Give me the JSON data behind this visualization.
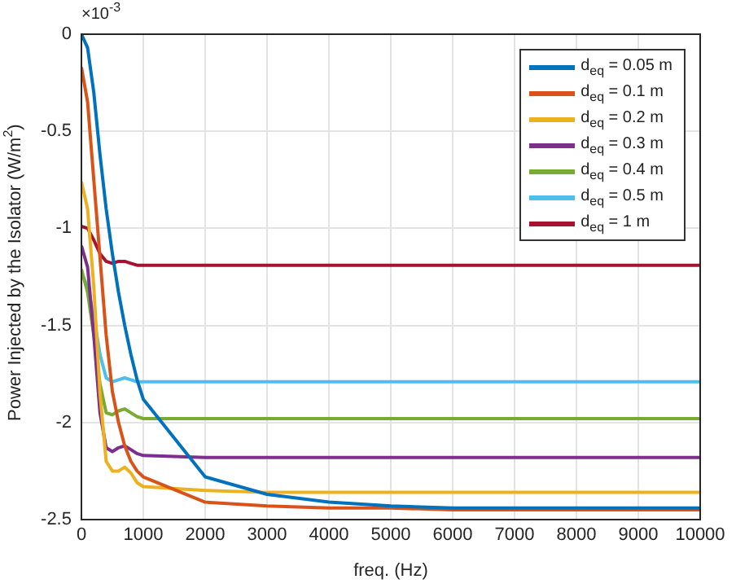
{
  "chart_data": {
    "type": "line",
    "xlabel": "freq. (Hz)",
    "ylabel": "Power Injected by the Isolator (W/m$^{2}$)",
    "annotations": [
      "×10$^{-3}$"
    ],
    "x": [
      0,
      100,
      200,
      300,
      400,
      500,
      600,
      700,
      800,
      900,
      1000,
      2000,
      3000,
      4000,
      5000,
      6000,
      7000,
      8000,
      9000,
      10000
    ],
    "series": [
      {
        "name": "d$_{eq}$ = 0.05 m",
        "color": "#0072bd",
        "values": [
          0,
          -0.07,
          -0.3,
          -0.62,
          -0.9,
          -1.13,
          -1.33,
          -1.5,
          -1.65,
          -1.78,
          -1.88,
          -2.28,
          -2.37,
          -2.41,
          -2.43,
          -2.44,
          -2.44,
          -2.44,
          -2.44,
          -2.44
        ]
      },
      {
        "name": "d$_{eq}$ = 0.1 m",
        "color": "#d95319",
        "values": [
          -0.17,
          -0.35,
          -0.75,
          -1.15,
          -1.55,
          -1.84,
          -2.0,
          -2.12,
          -2.2,
          -2.25,
          -2.28,
          -2.41,
          -2.43,
          -2.44,
          -2.44,
          -2.45,
          -2.45,
          -2.45,
          -2.45,
          -2.45
        ]
      },
      {
        "name": "d$_{eq}$ = 0.2 m",
        "color": "#edb120",
        "values": [
          -0.76,
          -0.9,
          -1.3,
          -1.85,
          -2.2,
          -2.25,
          -2.25,
          -2.23,
          -2.26,
          -2.31,
          -2.33,
          -2.35,
          -2.36,
          -2.36,
          -2.36,
          -2.36,
          -2.36,
          -2.36,
          -2.36,
          -2.36
        ]
      },
      {
        "name": "d$_{eq}$ = 0.3 m",
        "color": "#7e2f8e",
        "values": [
          -1.09,
          -1.2,
          -1.55,
          -1.95,
          -2.13,
          -2.15,
          -2.13,
          -2.12,
          -2.14,
          -2.16,
          -2.17,
          -2.18,
          -2.18,
          -2.18,
          -2.18,
          -2.18,
          -2.18,
          -2.18,
          -2.18,
          -2.18
        ]
      },
      {
        "name": "d$_{eq}$ = 0.4 m",
        "color": "#77ac30",
        "values": [
          -1.21,
          -1.33,
          -1.55,
          -1.8,
          -1.95,
          -1.96,
          -1.94,
          -1.93,
          -1.95,
          -1.97,
          -1.98,
          -1.98,
          -1.98,
          -1.98,
          -1.98,
          -1.98,
          -1.98,
          -1.98,
          -1.98,
          -1.98
        ]
      },
      {
        "name": "d$_{eq}$ = 0.5 m",
        "color": "#4dbeee",
        "values": [
          -1.23,
          -1.3,
          -1.45,
          -1.65,
          -1.77,
          -1.79,
          -1.78,
          -1.77,
          -1.78,
          -1.79,
          -1.79,
          -1.79,
          -1.79,
          -1.79,
          -1.79,
          -1.79,
          -1.79,
          -1.79,
          -1.79,
          -1.79
        ]
      },
      {
        "name": "d$_{eq}$ = 1 m",
        "color": "#a2142f",
        "values": [
          -0.99,
          -1.0,
          -1.06,
          -1.13,
          -1.17,
          -1.18,
          -1.17,
          -1.17,
          -1.18,
          -1.19,
          -1.19,
          -1.19,
          -1.19,
          -1.19,
          -1.19,
          -1.19,
          -1.19,
          -1.19,
          -1.19,
          -1.19
        ]
      }
    ],
    "xlim": [
      0,
      10000
    ],
    "xticks": [
      0,
      1000,
      2000,
      3000,
      4000,
      5000,
      6000,
      7000,
      8000,
      9000,
      10000
    ],
    "ylim": [
      -2.5,
      0
    ],
    "yticks": [
      -2.5,
      -2,
      -1.5,
      -1,
      -0.5,
      0
    ],
    "grid": true,
    "legend": "top right",
    "marker": "none",
    "line_style": "solid"
  }
}
